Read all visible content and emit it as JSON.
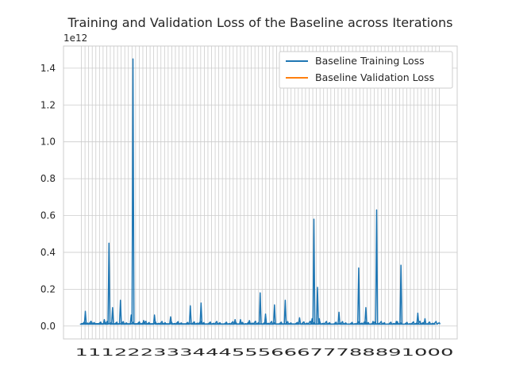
{
  "chart_data": {
    "type": "line",
    "title": "Training and Validation Loss of the Baseline across Iterations",
    "xlabel": "",
    "ylabel": "",
    "y_offset_label": "1e12",
    "y_scale": 1000000000000.0,
    "ylim": [
      -0.07,
      1.52
    ],
    "yticks": [
      0.0,
      0.2,
      0.4,
      0.6,
      0.8,
      1.0,
      1.2,
      1.4
    ],
    "ytick_labels": [
      "0.0",
      "0.2",
      "0.4",
      "0.6",
      "0.8",
      "1.0",
      "1.2",
      "1.4"
    ],
    "x_start": 1,
    "x_end": 1000,
    "grid": true,
    "legend_position": "top-right",
    "colors": {
      "training": "#1f77b4",
      "validation": "#ff7f0e",
      "grid": "#cccccc",
      "axes": "#cccccc"
    },
    "series": [
      {
        "name": "Baseline Training Loss",
        "color": "#1f77b4",
        "baseline": 0.01,
        "points": [
          [
            1,
            0.01
          ],
          [
            12,
            0.08
          ],
          [
            30,
            0.02
          ],
          [
            65,
            0.035
          ],
          [
            78,
            0.45
          ],
          [
            88,
            0.1
          ],
          [
            110,
            0.14
          ],
          [
            140,
            0.06
          ],
          [
            145,
            1.45
          ],
          [
            175,
            0.03
          ],
          [
            205,
            0.06
          ],
          [
            250,
            0.05
          ],
          [
            305,
            0.11
          ],
          [
            335,
            0.125
          ],
          [
            430,
            0.035
          ],
          [
            445,
            0.035
          ],
          [
            470,
            0.03
          ],
          [
            500,
            0.18
          ],
          [
            515,
            0.065
          ],
          [
            540,
            0.115
          ],
          [
            570,
            0.14
          ],
          [
            610,
            0.045
          ],
          [
            645,
            0.04
          ],
          [
            650,
            0.58
          ],
          [
            660,
            0.21
          ],
          [
            665,
            0.04
          ],
          [
            720,
            0.075
          ],
          [
            775,
            0.315
          ],
          [
            795,
            0.1
          ],
          [
            815,
            0.025
          ],
          [
            825,
            0.63
          ],
          [
            880,
            0.025
          ],
          [
            893,
            0.33
          ],
          [
            940,
            0.07
          ],
          [
            960,
            0.04
          ],
          [
            985,
            0.01
          ]
        ]
      },
      {
        "name": "Baseline Validation Loss",
        "color": "#ff7f0e",
        "points": []
      }
    ]
  }
}
